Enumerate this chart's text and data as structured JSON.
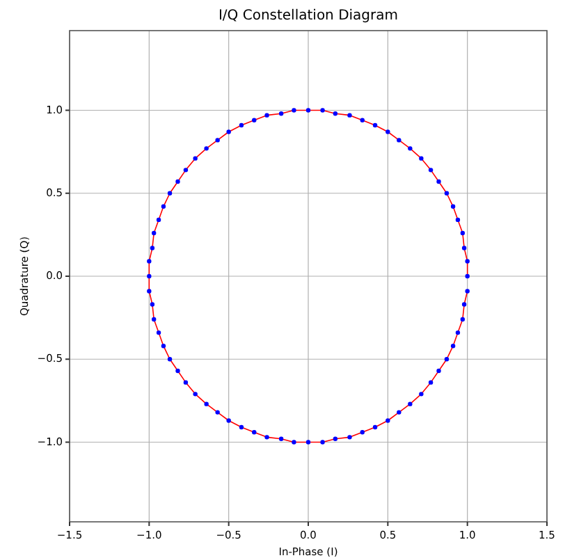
{
  "chart_data": {
    "type": "scatter",
    "title": "I/Q Constellation Diagram",
    "xlabel": "In-Phase (I)",
    "ylabel": "Quadrature (Q)",
    "xlim": [
      -1.5,
      1.5
    ],
    "ylim": [
      -1.48,
      1.48
    ],
    "xticks": [
      -1.5,
      {
        "value": -1,
        "label": "−1.0"
      },
      -0.5,
      {
        "value": 0,
        "label": "0.0"
      },
      0.5,
      {
        "value": 1,
        "label": "1.0"
      },
      1.5
    ],
    "yticks": [
      {
        "value": -1,
        "label": "−1.0"
      },
      -0.5,
      {
        "value": 0,
        "label": "0.0"
      },
      0.5,
      {
        "value": 1,
        "label": "1.0"
      }
    ],
    "grid": true,
    "marker": "circle",
    "series": [
      {
        "type": "line",
        "color": "#ff0000",
        "line_style": "solid",
        "marker": "none",
        "x": [
          1,
          1.0,
          0.98,
          0.97,
          0.94,
          0.91,
          0.87,
          0.82,
          0.77,
          0.71,
          0.64,
          0.57,
          0.5,
          0.42,
          0.34,
          0.26,
          0.17,
          0.09,
          0,
          -0.09,
          -0.17,
          -0.26,
          -0.34,
          -0.42,
          -0.5,
          -0.57,
          -0.64,
          -0.71,
          -0.77,
          -0.82,
          -0.87,
          -0.91,
          -0.94,
          -0.97,
          -0.98,
          -1.0,
          -1,
          -1.0,
          -0.98,
          -0.97,
          -0.94,
          -0.91,
          -0.87,
          -0.82,
          -0.77,
          -0.71,
          -0.64,
          -0.57,
          -0.5,
          -0.42,
          -0.34,
          -0.26,
          -0.17,
          -0.09,
          0,
          0.09,
          0.17,
          0.26,
          0.34,
          0.42,
          0.5,
          0.57,
          0.64,
          0.71,
          0.77,
          0.82,
          0.87,
          0.91,
          0.94,
          0.97,
          0.98,
          1.0
        ],
        "values": [
          0,
          0.09,
          0.17,
          0.26,
          0.34,
          0.42,
          0.5,
          0.57,
          0.64,
          0.71,
          0.77,
          0.82,
          0.87,
          0.91,
          0.94,
          0.97,
          0.98,
          1.0,
          1,
          1.0,
          0.98,
          0.97,
          0.94,
          0.91,
          0.87,
          0.82,
          0.77,
          0.71,
          0.64,
          0.57,
          0.5,
          0.42,
          0.34,
          0.26,
          0.17,
          0.09,
          0,
          -0.09,
          -0.17,
          -0.26,
          -0.34,
          -0.42,
          -0.5,
          -0.57,
          -0.64,
          -0.71,
          -0.77,
          -0.82,
          -0.87,
          -0.91,
          -0.94,
          -0.97,
          -0.98,
          -1.0,
          -1,
          -1.0,
          -0.98,
          -0.97,
          -0.94,
          -0.91,
          -0.87,
          -0.82,
          -0.77,
          -0.71,
          -0.64,
          -0.57,
          -0.5,
          -0.42,
          -0.34,
          -0.26,
          -0.17,
          -0.09
        ]
      },
      {
        "color": "#0000ff",
        "x": [
          1,
          1.0,
          0.98,
          0.97,
          0.94,
          0.91,
          0.87,
          0.82,
          0.77,
          0.71,
          0.64,
          0.57,
          0.5,
          0.42,
          0.34,
          0.26,
          0.17,
          0.09,
          0,
          -0.09,
          -0.17,
          -0.26,
          -0.34,
          -0.42,
          -0.5,
          -0.57,
          -0.64,
          -0.71,
          -0.77,
          -0.82,
          -0.87,
          -0.91,
          -0.94,
          -0.97,
          -0.98,
          -1.0,
          -1,
          -1.0,
          -0.98,
          -0.97,
          -0.94,
          -0.91,
          -0.87,
          -0.82,
          -0.77,
          -0.71,
          -0.64,
          -0.57,
          -0.5,
          -0.42,
          -0.34,
          -0.26,
          -0.17,
          -0.09,
          0,
          0.09,
          0.17,
          0.26,
          0.34,
          0.42,
          0.5,
          0.57,
          0.64,
          0.71,
          0.77,
          0.82,
          0.87,
          0.91,
          0.94,
          0.97,
          0.98,
          1.0
        ],
        "values": [
          0,
          0.09,
          0.17,
          0.26,
          0.34,
          0.42,
          0.5,
          0.57,
          0.64,
          0.71,
          0.77,
          0.82,
          0.87,
          0.91,
          0.94,
          0.97,
          0.98,
          1.0,
          1,
          1.0,
          0.98,
          0.97,
          0.94,
          0.91,
          0.87,
          0.82,
          0.77,
          0.71,
          0.64,
          0.57,
          0.5,
          0.42,
          0.34,
          0.26,
          0.17,
          0.09,
          0,
          -0.09,
          -0.17,
          -0.26,
          -0.34,
          -0.42,
          -0.5,
          -0.57,
          -0.64,
          -0.71,
          -0.77,
          -0.82,
          -0.87,
          -0.91,
          -0.94,
          -0.97,
          -0.98,
          -1.0,
          -1,
          -1.0,
          -0.98,
          -0.97,
          -0.94,
          -0.91,
          -0.87,
          -0.82,
          -0.77,
          -0.71,
          -0.64,
          -0.57,
          -0.5,
          -0.42,
          -0.34,
          -0.26,
          -0.17,
          -0.09
        ]
      }
    ]
  }
}
